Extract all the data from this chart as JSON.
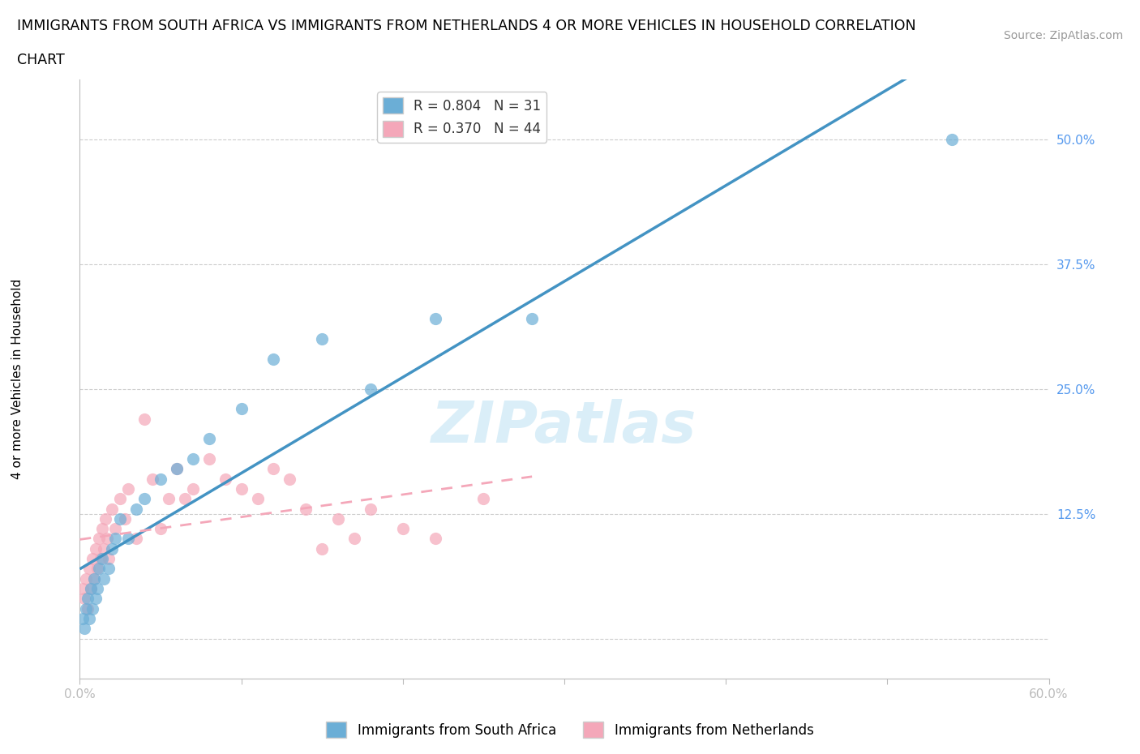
{
  "title_line1": "IMMIGRANTS FROM SOUTH AFRICA VS IMMIGRANTS FROM NETHERLANDS 4 OR MORE VEHICLES IN HOUSEHOLD CORRELATION",
  "title_line2": "CHART",
  "source": "Source: ZipAtlas.com",
  "ylabel": "4 or more Vehicles in Household",
  "xlim": [
    0.0,
    0.6
  ],
  "ylim": [
    -0.04,
    0.56
  ],
  "xticks": [
    0.0,
    0.1,
    0.2,
    0.3,
    0.4,
    0.5,
    0.6
  ],
  "xticklabels": [
    "0.0%",
    "",
    "",
    "",
    "",
    "",
    "60.0%"
  ],
  "yticks": [
    0.0,
    0.125,
    0.25,
    0.375,
    0.5
  ],
  "yticklabels": [
    "",
    "12.5%",
    "25.0%",
    "37.5%",
    "50.0%"
  ],
  "color_sa": "#6baed6",
  "color_nl": "#f4a7b9",
  "color_sa_line": "#4393c3",
  "color_nl_line": "#f4a7b9",
  "r_sa": 0.804,
  "n_sa": 31,
  "r_nl": 0.37,
  "n_nl": 44,
  "background_color": "#ffffff",
  "grid_color": "#cccccc",
  "watermark_text": "ZIPatlas",
  "sa_scatter_x": [
    0.002,
    0.003,
    0.004,
    0.005,
    0.006,
    0.007,
    0.008,
    0.009,
    0.01,
    0.011,
    0.012,
    0.014,
    0.015,
    0.018,
    0.02,
    0.022,
    0.025,
    0.03,
    0.035,
    0.04,
    0.05,
    0.06,
    0.07,
    0.08,
    0.1,
    0.12,
    0.15,
    0.18,
    0.22,
    0.28,
    0.54
  ],
  "sa_scatter_y": [
    0.02,
    0.01,
    0.03,
    0.04,
    0.02,
    0.05,
    0.03,
    0.06,
    0.04,
    0.05,
    0.07,
    0.08,
    0.06,
    0.07,
    0.09,
    0.1,
    0.12,
    0.1,
    0.13,
    0.14,
    0.16,
    0.17,
    0.18,
    0.2,
    0.23,
    0.28,
    0.3,
    0.25,
    0.32,
    0.32,
    0.5
  ],
  "nl_scatter_x": [
    0.002,
    0.003,
    0.004,
    0.005,
    0.006,
    0.007,
    0.008,
    0.009,
    0.01,
    0.011,
    0.012,
    0.013,
    0.014,
    0.015,
    0.016,
    0.017,
    0.018,
    0.02,
    0.022,
    0.025,
    0.028,
    0.03,
    0.035,
    0.04,
    0.045,
    0.05,
    0.055,
    0.06,
    0.065,
    0.07,
    0.08,
    0.09,
    0.1,
    0.11,
    0.12,
    0.13,
    0.14,
    0.15,
    0.16,
    0.17,
    0.18,
    0.2,
    0.22,
    0.25
  ],
  "nl_scatter_y": [
    0.05,
    0.04,
    0.06,
    0.03,
    0.07,
    0.05,
    0.08,
    0.06,
    0.09,
    0.07,
    0.1,
    0.08,
    0.11,
    0.09,
    0.12,
    0.1,
    0.08,
    0.13,
    0.11,
    0.14,
    0.12,
    0.15,
    0.1,
    0.22,
    0.16,
    0.11,
    0.14,
    0.17,
    0.14,
    0.15,
    0.18,
    0.16,
    0.15,
    0.14,
    0.17,
    0.16,
    0.13,
    0.09,
    0.12,
    0.1,
    0.13,
    0.11,
    0.1,
    0.14
  ],
  "title_fontsize": 12.5,
  "axis_label_fontsize": 11,
  "tick_fontsize": 11,
  "legend_fontsize": 12,
  "watermark_fontsize": 52,
  "watermark_color": "#daeef8",
  "source_fontsize": 10,
  "source_color": "#999999"
}
